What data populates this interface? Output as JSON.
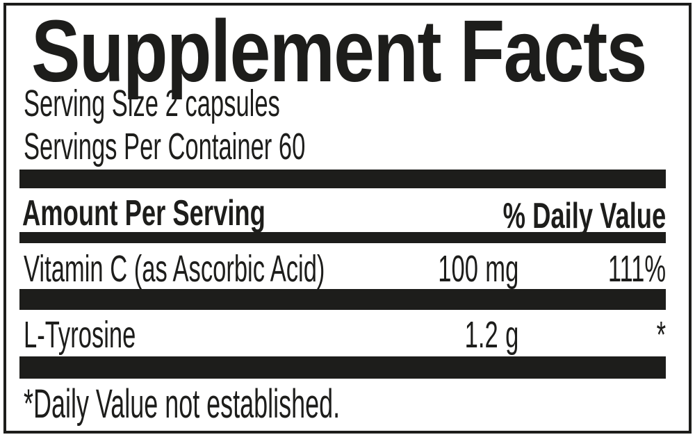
{
  "colors": {
    "ink": "#1d1d1b",
    "background": "#ffffff"
  },
  "panel": {
    "title": "Supplement Facts",
    "serving_size": "Serving Size 2 capsules",
    "servings_per_container": "Servings Per Container 60",
    "header": {
      "amount_per_serving": "Amount Per Serving",
      "daily_value": "% Daily Value"
    },
    "nutrients": [
      {
        "name": "Vitamin C (as Ascorbic Acid)",
        "amount": "100",
        "unit": "mg",
        "daily_value": "111%"
      },
      {
        "name": "L-Tyrosine",
        "amount": "1.2",
        "unit": "g",
        "daily_value": "*"
      }
    ],
    "footnote": "*Daily Value not established."
  }
}
